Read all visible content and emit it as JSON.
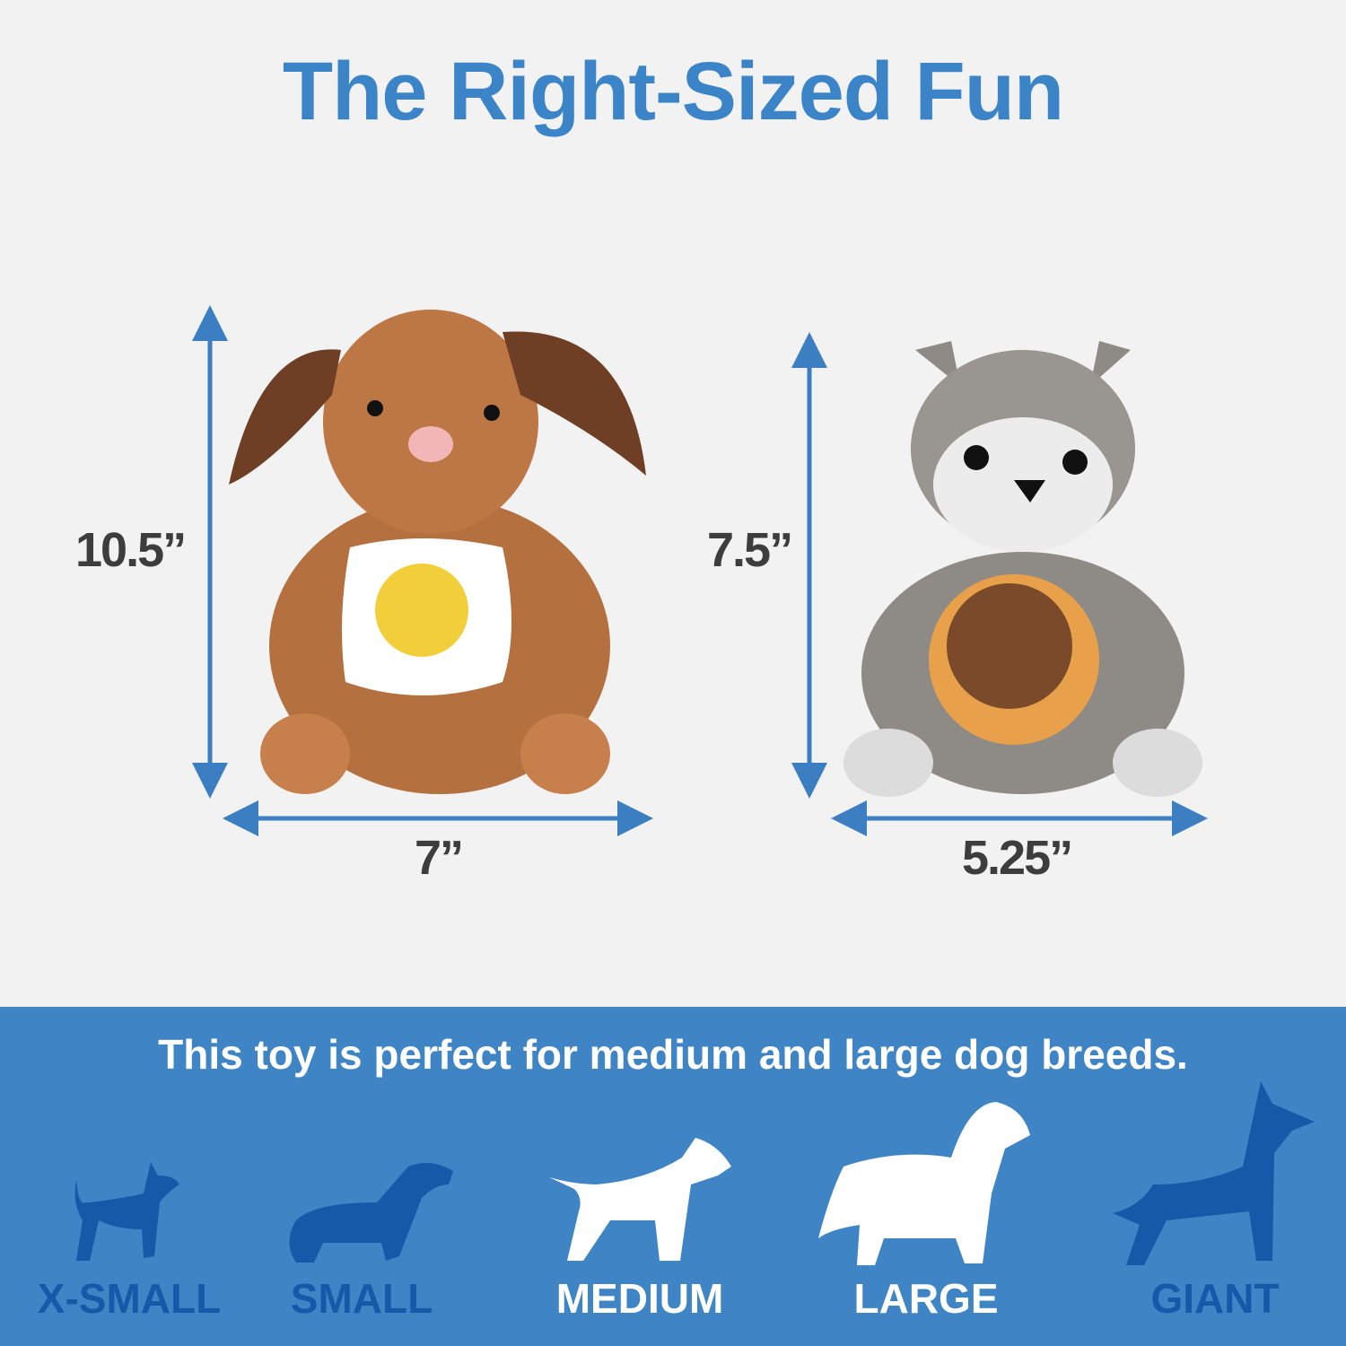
{
  "title": "The Right-Sized Fun",
  "toys": [
    {
      "name": "brown bunny with egg",
      "height": "10.5”",
      "width": "7”"
    },
    {
      "name": "grey squirrel with pancake",
      "height": "7.5”",
      "width": "5.25”"
    }
  ],
  "banner": {
    "text": "This toy is perfect for medium and large dog breeds.",
    "sizes": [
      {
        "label": "X-SMALL",
        "highlighted": false
      },
      {
        "label": "SMALL",
        "highlighted": false
      },
      {
        "label": "MEDIUM",
        "highlighted": true
      },
      {
        "label": "LARGE",
        "highlighted": true
      },
      {
        "label": "GIANT",
        "highlighted": false
      }
    ]
  },
  "colors": {
    "accent": "#3b84c7",
    "banner": "#3f85c6",
    "inactive": "#1559a8",
    "active": "#ffffff"
  }
}
